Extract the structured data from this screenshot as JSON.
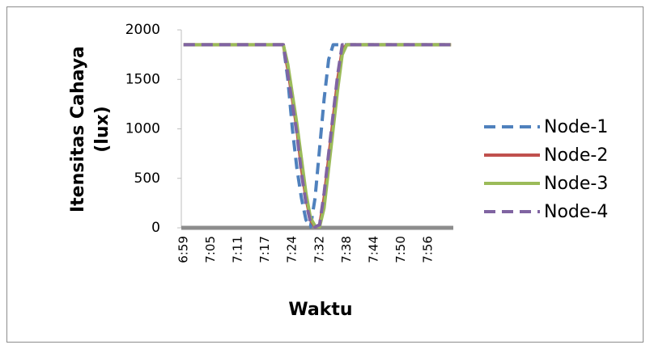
{
  "chart_data": {
    "type": "line",
    "ylabel_lines": [
      "Itensitas Cahaya",
      "(lux)"
    ],
    "xlabel": "Waktu",
    "categories": [
      "6:59",
      null,
      null,
      null,
      null,
      null,
      "7:05",
      null,
      null,
      null,
      null,
      null,
      "7:11",
      null,
      null,
      null,
      null,
      null,
      "7:17",
      null,
      null,
      null,
      null,
      null,
      "7:24",
      null,
      null,
      null,
      null,
      null,
      "7:32",
      null,
      null,
      null,
      null,
      null,
      "7:38",
      null,
      null,
      null,
      null,
      null,
      "7:44",
      null,
      null,
      null,
      null,
      null,
      "7:50",
      null,
      null,
      null,
      null,
      null,
      "7:56",
      null,
      null,
      null,
      null,
      null
    ],
    "ylim": [
      0,
      2000
    ],
    "yticks": [
      0,
      500,
      1000,
      1500,
      2000
    ],
    "grid": false,
    "legend": "right",
    "series": [
      {
        "name": "Node-1",
        "color": "#4f81bd",
        "dashed": true,
        "values": [
          1850,
          1850,
          1850,
          1850,
          1850,
          1850,
          1850,
          1850,
          1850,
          1850,
          1850,
          1850,
          1850,
          1850,
          1850,
          1850,
          1850,
          1850,
          1850,
          1850,
          1850,
          1850,
          1850,
          1500,
          1000,
          600,
          300,
          80,
          10,
          300,
          800,
          1300,
          1700,
          1850,
          1850,
          1850,
          1850,
          1850,
          1850,
          1850,
          1850,
          1850,
          1850,
          1850,
          1850,
          1850,
          1850,
          1850,
          1850,
          1850,
          1850,
          1850,
          1850,
          1850,
          1850,
          1850,
          1850,
          1850,
          1850,
          1850
        ]
      },
      {
        "name": "Node-2",
        "color": "#c0504d",
        "dashed": false,
        "values": [
          1850,
          1850,
          1850,
          1850,
          1850,
          1850,
          1850,
          1850,
          1850,
          1850,
          1850,
          1850,
          1850,
          1850,
          1850,
          1850,
          1850,
          1850,
          1850,
          1850,
          1850,
          1850,
          1850,
          1600,
          1300,
          1000,
          600,
          300,
          80,
          10,
          20,
          300,
          700,
          1100,
          1500,
          1800,
          1850,
          1850,
          1850,
          1850,
          1850,
          1850,
          1850,
          1850,
          1850,
          1850,
          1850,
          1850,
          1850,
          1850,
          1850,
          1850,
          1850,
          1850,
          1850,
          1850,
          1850,
          1850,
          1850,
          1850
        ]
      },
      {
        "name": "Node-3",
        "color": "#9bbb59",
        "dashed": false,
        "values": [
          1850,
          1850,
          1850,
          1850,
          1850,
          1850,
          1850,
          1850,
          1850,
          1850,
          1850,
          1850,
          1850,
          1850,
          1850,
          1850,
          1850,
          1850,
          1850,
          1850,
          1850,
          1850,
          1850,
          1650,
          1350,
          1050,
          700,
          350,
          100,
          20,
          10,
          200,
          600,
          1000,
          1400,
          1750,
          1850,
          1850,
          1850,
          1850,
          1850,
          1850,
          1850,
          1850,
          1850,
          1850,
          1850,
          1850,
          1850,
          1850,
          1850,
          1850,
          1850,
          1850,
          1850,
          1850,
          1850,
          1850,
          1850,
          1850
        ]
      },
      {
        "name": "Node-4",
        "color": "#8064a2",
        "dashed": true,
        "values": [
          1850,
          1850,
          1850,
          1850,
          1850,
          1850,
          1850,
          1850,
          1850,
          1850,
          1850,
          1850,
          1850,
          1850,
          1850,
          1850,
          1850,
          1850,
          1850,
          1850,
          1850,
          1850,
          1850,
          1550,
          1250,
          950,
          550,
          250,
          60,
          10,
          30,
          350,
          750,
          1150,
          1550,
          1850,
          1850,
          1850,
          1850,
          1850,
          1850,
          1850,
          1850,
          1850,
          1850,
          1850,
          1850,
          1850,
          1850,
          1850,
          1850,
          1850,
          1850,
          1850,
          1850,
          1850,
          1850,
          1850,
          1850,
          1850
        ]
      }
    ]
  }
}
